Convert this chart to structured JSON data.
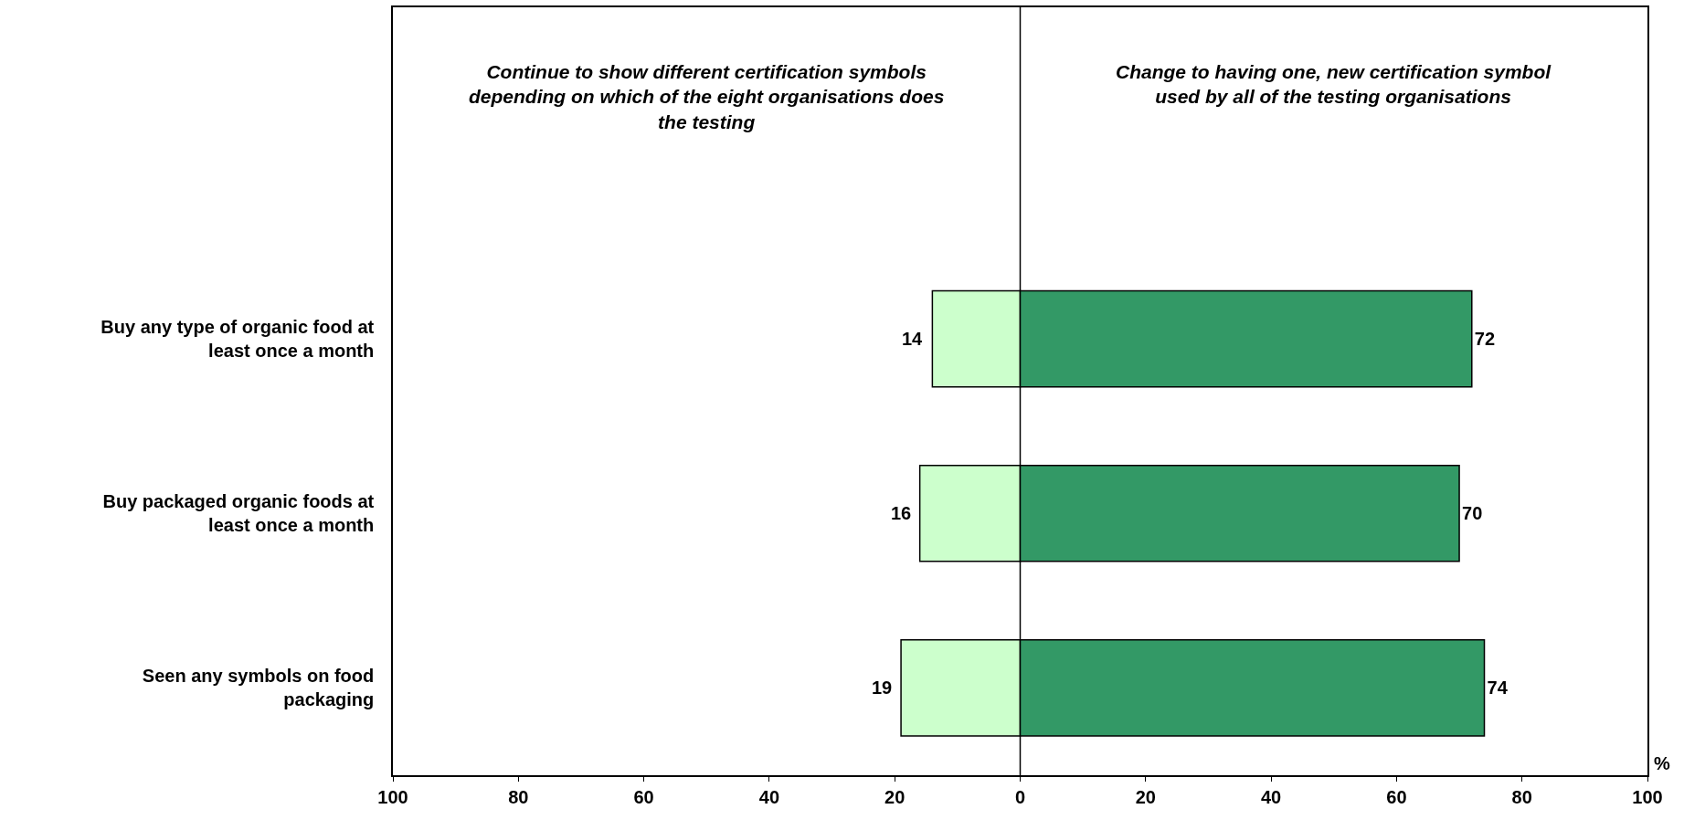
{
  "chart_data": {
    "type": "bar",
    "orientation": "horizontal",
    "categories": [
      "Buy any type of organic food at least once a month",
      "Buy packaged organic foods at least once a month",
      "Seen any symbols on food packaging"
    ],
    "series": [
      {
        "color": "#ccffcc",
        "base": [
          -14,
          -16,
          -19
        ],
        "values": [
          14,
          16,
          19
        ],
        "data_labels": true
      },
      {
        "color": "#339966",
        "base": [
          0,
          0,
          0
        ],
        "values": [
          72,
          70,
          74
        ],
        "data_labels": true
      }
    ],
    "ref_lines": [
      {
        "axis": "x",
        "value": 0,
        "color": "#000000"
      }
    ],
    "xlabel": "%",
    "xlim": [
      -100,
      100
    ],
    "xticks": [
      {
        "value": -100,
        "label": "100"
      },
      {
        "value": -80,
        "label": "80"
      },
      {
        "value": -60,
        "label": "60"
      },
      {
        "value": -40,
        "label": "40"
      },
      {
        "value": -20,
        "label": "20"
      },
      0,
      20,
      40,
      60,
      80,
      100
    ],
    "annotations": [
      "Continue to show different certification symbols depending on which of the eight organisations does the testing",
      "Change to having one, new certification symbol used by all of the testing organisations"
    ],
    "grid": false
  }
}
